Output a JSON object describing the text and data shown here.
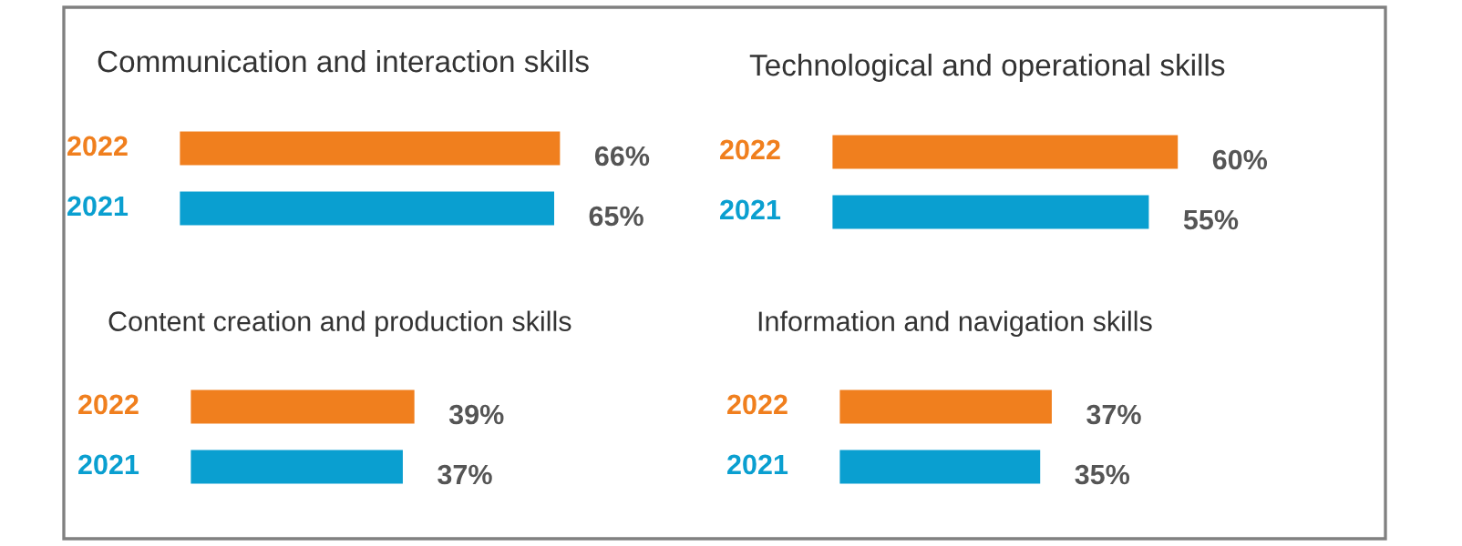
{
  "chart_data": [
    {
      "type": "bar",
      "orientation": "horizontal",
      "title": "Communication and interaction skills",
      "categories": [
        "2022",
        "2021"
      ],
      "values": [
        66,
        65
      ],
      "colors": [
        "#f07f1e",
        "#0a9fd0"
      ],
      "value_labels": [
        "66%",
        "65%"
      ],
      "tick_labels": false
    },
    {
      "type": "bar",
      "orientation": "horizontal",
      "title": "Technological and operational skills",
      "categories": [
        "2022",
        "2021"
      ],
      "values": [
        60,
        55
      ],
      "colors": [
        "#f07f1e",
        "#0a9fd0"
      ],
      "value_labels": [
        "60%",
        "55%"
      ],
      "tick_labels": false
    },
    {
      "type": "bar",
      "orientation": "horizontal",
      "title": "Content creation and production skills",
      "categories": [
        "2022",
        "2021"
      ],
      "values": [
        39,
        37
      ],
      "colors": [
        "#f07f1e",
        "#0a9fd0"
      ],
      "value_labels": [
        "39%",
        "37%"
      ],
      "tick_labels": false
    },
    {
      "type": "bar",
      "orientation": "horizontal",
      "title": "Information and navigation skills",
      "categories": [
        "2022",
        "2021"
      ],
      "values": [
        37,
        35
      ],
      "colors": [
        "#f07f1e",
        "#0a9fd0"
      ],
      "value_labels": [
        "37%",
        "35%"
      ],
      "tick_labels": false
    }
  ]
}
